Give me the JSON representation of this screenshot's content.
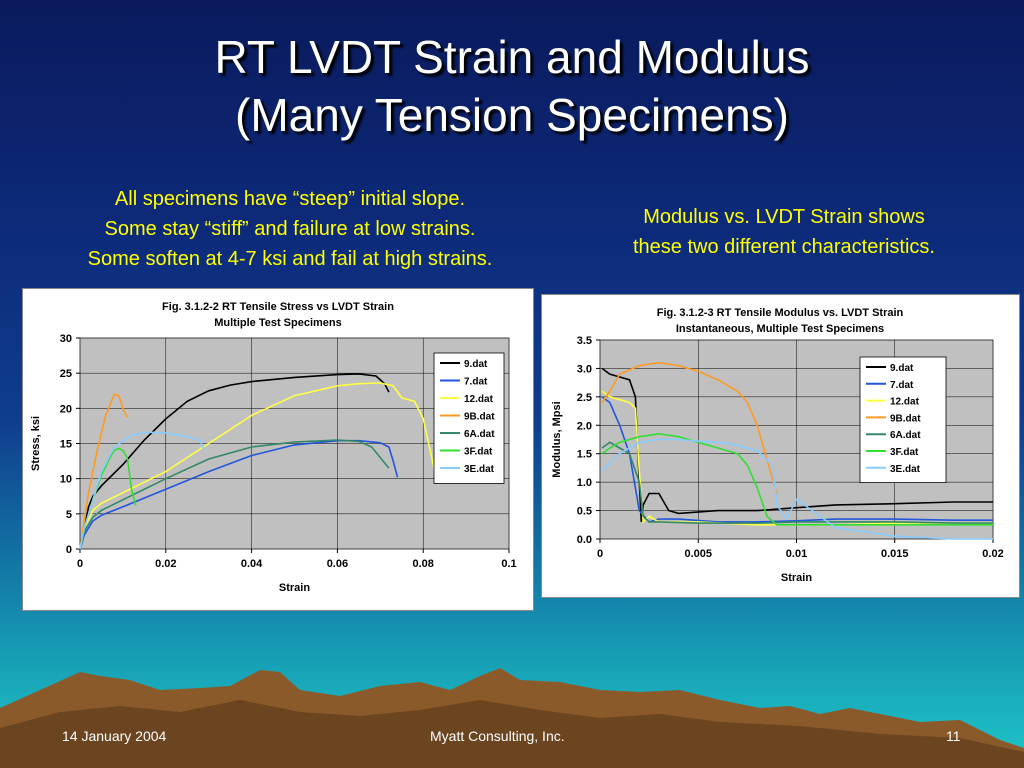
{
  "slide": {
    "title_line1": "RT LVDT Strain and Modulus",
    "title_line2": "(Many Tension Specimens)",
    "note_left": [
      "All specimens have “steep” initial slope.",
      "Some stay “stiff” and failure at low strains.",
      "Some soften at 4-7 ksi and fail at high strains."
    ],
    "note_right": [
      "Modulus vs. LVDT Strain shows",
      "these two different characteristics."
    ],
    "footer_date": "14 January 2004",
    "footer_company": "Myatt Consulting, Inc.",
    "footer_page": "11",
    "text_color_notes": "#ffff00"
  },
  "chart_data": [
    {
      "type": "line",
      "title": "Fig. 3.1.2-2 RT Tensile Stress vs LVDT Strain",
      "subtitle": "Multiple Test Specimens",
      "xlabel": "Strain",
      "ylabel": "Stress, ksi",
      "xlim": [
        0,
        0.1
      ],
      "ylim": [
        0,
        30
      ],
      "xticks": [
        0,
        0.02,
        0.04,
        0.06,
        0.08,
        0.1
      ],
      "xtick_labels": [
        "0",
        "0.02",
        "0.04",
        "0.06",
        "0.08",
        "0.1"
      ],
      "yticks": [
        0,
        5,
        10,
        15,
        20,
        25,
        30
      ],
      "ytick_labels": [
        "0",
        "5",
        "10",
        "15",
        "20",
        "25",
        "30"
      ],
      "grid": true,
      "legend_position": "right",
      "series": [
        {
          "name": "9.dat",
          "color": "#000000",
          "x": [
            0,
            0.001,
            0.002,
            0.003,
            0.005,
            0.01,
            0.015,
            0.02,
            0.025,
            0.03,
            0.035,
            0.04,
            0.05,
            0.06,
            0.065,
            0.069,
            0.071,
            0.072
          ],
          "y": [
            0,
            3,
            6,
            7.5,
            9,
            12,
            15.5,
            18.5,
            21,
            22.5,
            23.3,
            23.8,
            24.4,
            24.8,
            24.9,
            24.6,
            23.5,
            22.3
          ]
        },
        {
          "name": "7.dat",
          "color": "#2255dd",
          "x": [
            0,
            0.001,
            0.003,
            0.005,
            0.01,
            0.02,
            0.03,
            0.04,
            0.05,
            0.06,
            0.065,
            0.07,
            0.072,
            0.073,
            0.074
          ],
          "y": [
            0,
            2,
            4,
            4.8,
            6,
            8.5,
            11,
            13.3,
            14.8,
            15.4,
            15.4,
            15.1,
            14.5,
            12.5,
            10.2
          ]
        },
        {
          "name": "12.dat",
          "color": "#ffff44",
          "x": [
            0,
            0.001,
            0.003,
            0.005,
            0.01,
            0.02,
            0.03,
            0.04,
            0.05,
            0.06,
            0.065,
            0.07,
            0.073,
            0.075,
            0.078,
            0.08,
            0.082,
            0.083
          ],
          "y": [
            0,
            3,
            5.5,
            6.5,
            8,
            11,
            15,
            19,
            21.8,
            23.2,
            23.5,
            23.6,
            23.2,
            21.5,
            21,
            18.5,
            13,
            9.8
          ]
        },
        {
          "name": "9B.dat",
          "color": "#ff9922",
          "x": [
            0,
            0.001,
            0.002,
            0.004,
            0.006,
            0.008,
            0.009,
            0.0095,
            0.01,
            0.011
          ],
          "y": [
            0,
            4,
            8,
            14,
            19,
            22,
            21.8,
            21,
            20,
            18.7
          ]
        },
        {
          "name": "6A.dat",
          "color": "#338866",
          "x": [
            0,
            0.001,
            0.003,
            0.005,
            0.01,
            0.02,
            0.03,
            0.04,
            0.05,
            0.06,
            0.065,
            0.068,
            0.07,
            0.072
          ],
          "y": [
            0,
            2.5,
            4.5,
            5.5,
            7,
            10,
            12.8,
            14.5,
            15.2,
            15.5,
            15.3,
            14.5,
            13,
            11.5
          ]
        },
        {
          "name": "3F.dat",
          "color": "#33dd33",
          "x": [
            0,
            0.001,
            0.003,
            0.005,
            0.007,
            0.008,
            0.009,
            0.01,
            0.011,
            0.0115,
            0.012,
            0.013
          ],
          "y": [
            0,
            3,
            7,
            10.5,
            13,
            14,
            14.3,
            14,
            13,
            11,
            8.5,
            6.2
          ]
        },
        {
          "name": "3E.dat",
          "color": "#88ccff",
          "x": [
            0,
            0.001,
            0.003,
            0.005,
            0.008,
            0.012,
            0.016,
            0.02,
            0.025,
            0.028,
            0.029
          ],
          "y": [
            0,
            3,
            7,
            11,
            14.5,
            16.2,
            16.6,
            16.5,
            16,
            15.4,
            14
          ]
        }
      ]
    },
    {
      "type": "line",
      "title": "Fig. 3.1.2-3 RT Tensile Modulus vs. LVDT Strain",
      "subtitle": "Instantaneous, Multiple Test Specimens",
      "xlabel": "Strain",
      "ylabel": "Modulus, Mpsi",
      "xlim": [
        0,
        0.02
      ],
      "ylim": [
        0,
        3.5
      ],
      "xticks": [
        0,
        0.005,
        0.01,
        0.015,
        0.02
      ],
      "xtick_labels": [
        "0",
        "0.005",
        "0.01",
        "0.015",
        "0.02"
      ],
      "yticks": [
        0,
        0.5,
        1,
        1.5,
        2,
        2.5,
        3,
        3.5
      ],
      "ytick_labels": [
        "0.0",
        "0.5",
        "1.0",
        "1.5",
        "2.0",
        "2.5",
        "3.0",
        "3.5"
      ],
      "grid": true,
      "legend_position": "right",
      "series": [
        {
          "name": "9.dat",
          "color": "#000000",
          "x": [
            0.0001,
            0.0005,
            0.001,
            0.0015,
            0.0018,
            0.002,
            0.0021,
            0.0022,
            0.0025,
            0.003,
            0.0035,
            0.004,
            0.006,
            0.008,
            0.01,
            0.012,
            0.015,
            0.018,
            0.02
          ],
          "y": [
            3.0,
            2.9,
            2.85,
            2.8,
            2.5,
            1.0,
            0.3,
            0.6,
            0.8,
            0.8,
            0.5,
            0.45,
            0.5,
            0.5,
            0.55,
            0.6,
            0.62,
            0.65,
            0.65
          ]
        },
        {
          "name": "7.dat",
          "color": "#2255dd",
          "x": [
            0.0001,
            0.0005,
            0.001,
            0.0015,
            0.002,
            0.0025,
            0.003,
            0.004,
            0.006,
            0.008,
            0.01,
            0.012,
            0.015,
            0.018,
            0.02
          ],
          "y": [
            2.5,
            2.4,
            2.0,
            1.5,
            0.5,
            0.3,
            0.35,
            0.35,
            0.3,
            0.3,
            0.32,
            0.35,
            0.35,
            0.33,
            0.33
          ]
        },
        {
          "name": "12.dat",
          "color": "#ffff44",
          "x": [
            0.0001,
            0.0005,
            0.001,
            0.0015,
            0.0018,
            0.002,
            0.0022,
            0.0025,
            0.003,
            0.005,
            0.008,
            0.01,
            0.012,
            0.015,
            0.018,
            0.02
          ],
          "y": [
            2.6,
            2.5,
            2.45,
            2.4,
            2.3,
            1.2,
            0.3,
            0.4,
            0.3,
            0.3,
            0.25,
            0.25,
            0.25,
            0.28,
            0.28,
            0.28
          ]
        },
        {
          "name": "9B.dat",
          "color": "#ff9922",
          "x": [
            0.0001,
            0.0005,
            0.001,
            0.002,
            0.003,
            0.004,
            0.005,
            0.006,
            0.007,
            0.0075,
            0.008,
            0.0085,
            0.009
          ],
          "y": [
            2.4,
            2.6,
            2.9,
            3.05,
            3.1,
            3.05,
            2.95,
            2.8,
            2.6,
            2.4,
            2.0,
            1.4,
            0.8
          ]
        },
        {
          "name": "6A.dat",
          "color": "#338866",
          "x": [
            0.0001,
            0.0005,
            0.001,
            0.0015,
            0.002,
            0.0022,
            0.0025,
            0.003,
            0.005,
            0.008,
            0.01,
            0.012,
            0.015,
            0.018,
            0.02
          ],
          "y": [
            1.6,
            1.7,
            1.6,
            1.5,
            1.0,
            0.4,
            0.3,
            0.3,
            0.28,
            0.28,
            0.3,
            0.3,
            0.3,
            0.28,
            0.28
          ]
        },
        {
          "name": "3F.dat",
          "color": "#33dd33",
          "x": [
            0.0001,
            0.0005,
            0.001,
            0.002,
            0.003,
            0.004,
            0.005,
            0.006,
            0.007,
            0.0075,
            0.008,
            0.0085,
            0.009,
            0.01,
            0.015,
            0.02
          ],
          "y": [
            1.5,
            1.6,
            1.7,
            1.8,
            1.85,
            1.8,
            1.7,
            1.6,
            1.5,
            1.3,
            0.9,
            0.4,
            0.25,
            0.25,
            0.25,
            0.25
          ]
        },
        {
          "name": "3E.dat",
          "color": "#88ccff",
          "x": [
            0.0001,
            0.001,
            0.002,
            0.003,
            0.004,
            0.005,
            0.006,
            0.007,
            0.008,
            0.0088,
            0.009,
            0.0095,
            0.01,
            0.012,
            0.015,
            0.018,
            0.02
          ],
          "y": [
            1.2,
            1.5,
            1.7,
            1.75,
            1.75,
            1.72,
            1.7,
            1.65,
            1.55,
            1.3,
            0.6,
            0.35,
            0.7,
            0.2,
            0.05,
            0.0,
            0.0
          ]
        }
      ]
    }
  ]
}
